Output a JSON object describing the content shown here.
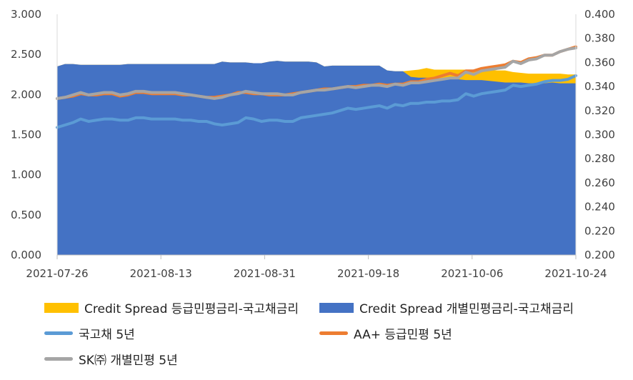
{
  "chart_data": {
    "type": "area+line",
    "left_axis": {
      "ticks": [
        "0.000",
        "0.500",
        "1.000",
        "1.500",
        "2.000",
        "2.500",
        "3.000"
      ],
      "ylim": [
        0,
        3.0
      ]
    },
    "right_axis": {
      "ticks": [
        "0.200",
        "0.220",
        "0.240",
        "0.260",
        "0.280",
        "0.300",
        "0.320",
        "0.340",
        "0.360",
        "0.380",
        "0.400"
      ],
      "ylim": [
        0.2,
        0.4
      ]
    },
    "x_ticks": [
      "2021-07-26",
      "2021-08-13",
      "2021-08-31",
      "2021-09-18",
      "2021-10-06",
      "2021-10-24"
    ],
    "n_points": 67,
    "series": [
      {
        "name": "Credit Spread 등급민평금리-국고채금리",
        "type": "area",
        "axis": "left",
        "color": "#FFC000",
        "values": [
          2.35,
          2.38,
          2.38,
          2.37,
          2.37,
          2.37,
          2.37,
          2.37,
          2.37,
          2.38,
          2.38,
          2.38,
          2.38,
          2.38,
          2.38,
          2.38,
          2.38,
          2.38,
          2.38,
          2.38,
          2.38,
          2.41,
          2.4,
          2.4,
          2.4,
          2.39,
          2.39,
          2.41,
          2.42,
          2.41,
          2.41,
          2.41,
          2.41,
          2.4,
          2.35,
          2.36,
          2.36,
          2.36,
          2.36,
          2.36,
          2.36,
          2.36,
          2.3,
          2.29,
          2.29,
          2.3,
          2.31,
          2.33,
          2.31,
          2.31,
          2.31,
          2.31,
          2.31,
          2.31,
          2.31,
          2.31,
          2.3,
          2.3,
          2.28,
          2.27,
          2.26,
          2.26,
          2.26,
          2.26,
          2.26,
          2.25,
          2.25
        ]
      },
      {
        "name": "Credit Spread 개별민평금리-국고채금리",
        "type": "area",
        "axis": "left",
        "color": "#4472C4",
        "values": [
          2.35,
          2.38,
          2.38,
          2.37,
          2.37,
          2.37,
          2.37,
          2.37,
          2.37,
          2.38,
          2.38,
          2.38,
          2.38,
          2.38,
          2.38,
          2.38,
          2.38,
          2.38,
          2.38,
          2.38,
          2.38,
          2.41,
          2.4,
          2.4,
          2.4,
          2.39,
          2.39,
          2.41,
          2.42,
          2.41,
          2.41,
          2.41,
          2.41,
          2.4,
          2.35,
          2.36,
          2.36,
          2.36,
          2.36,
          2.36,
          2.36,
          2.36,
          2.3,
          2.29,
          2.29,
          2.22,
          2.21,
          2.21,
          2.2,
          2.2,
          2.2,
          2.19,
          2.18,
          2.18,
          2.18,
          2.17,
          2.16,
          2.15,
          2.15,
          2.15,
          2.14,
          2.14,
          2.14,
          2.15,
          2.14,
          2.14,
          2.14
        ]
      },
      {
        "name": "국고채 5년",
        "type": "line",
        "axis": "right",
        "color": "#5B9BD5",
        "values": [
          0.306,
          0.308,
          0.31,
          0.313,
          0.311,
          0.312,
          0.313,
          0.313,
          0.312,
          0.312,
          0.314,
          0.314,
          0.313,
          0.313,
          0.313,
          0.313,
          0.312,
          0.312,
          0.311,
          0.311,
          0.309,
          0.308,
          0.309,
          0.31,
          0.314,
          0.313,
          0.311,
          0.312,
          0.312,
          0.311,
          0.311,
          0.314,
          0.315,
          0.316,
          0.317,
          0.318,
          0.32,
          0.322,
          0.321,
          0.322,
          0.323,
          0.324,
          0.322,
          0.325,
          0.324,
          0.326,
          0.326,
          0.327,
          0.327,
          0.328,
          0.328,
          0.329,
          0.334,
          0.332,
          0.334,
          0.335,
          0.336,
          0.337,
          0.341,
          0.34,
          0.341,
          0.342,
          0.344,
          0.345,
          0.345,
          0.346,
          0.349
        ]
      },
      {
        "name": "AA+ 등급민평 5년",
        "type": "line",
        "axis": "right",
        "color": "#ED7D31",
        "values": [
          0.33,
          0.331,
          0.332,
          0.334,
          0.333,
          0.333,
          0.334,
          0.334,
          0.332,
          0.333,
          0.335,
          0.335,
          0.334,
          0.334,
          0.334,
          0.334,
          0.333,
          0.333,
          0.332,
          0.331,
          0.331,
          0.332,
          0.333,
          0.335,
          0.335,
          0.334,
          0.334,
          0.333,
          0.333,
          0.333,
          0.334,
          0.335,
          0.336,
          0.337,
          0.338,
          0.338,
          0.339,
          0.34,
          0.34,
          0.341,
          0.341,
          0.342,
          0.341,
          0.342,
          0.342,
          0.344,
          0.344,
          0.346,
          0.347,
          0.349,
          0.351,
          0.349,
          0.353,
          0.353,
          0.355,
          0.356,
          0.357,
          0.358,
          0.361,
          0.36,
          0.363,
          0.364,
          0.366,
          0.366,
          0.369,
          0.371,
          0.373
        ]
      },
      {
        "name": "SK㈜ 개별민평 5년",
        "type": "line",
        "axis": "right",
        "color": "#A5A5A5",
        "values": [
          0.33,
          0.331,
          0.333,
          0.335,
          0.333,
          0.334,
          0.335,
          0.335,
          0.333,
          0.334,
          0.336,
          0.336,
          0.335,
          0.335,
          0.335,
          0.335,
          0.334,
          0.333,
          0.332,
          0.331,
          0.33,
          0.331,
          0.333,
          0.334,
          0.336,
          0.335,
          0.334,
          0.334,
          0.334,
          0.333,
          0.333,
          0.335,
          0.336,
          0.337,
          0.337,
          0.338,
          0.339,
          0.34,
          0.339,
          0.34,
          0.341,
          0.341,
          0.34,
          0.342,
          0.341,
          0.343,
          0.343,
          0.344,
          0.345,
          0.346,
          0.347,
          0.347,
          0.352,
          0.35,
          0.353,
          0.354,
          0.355,
          0.356,
          0.361,
          0.359,
          0.362,
          0.363,
          0.366,
          0.366,
          0.369,
          0.371,
          0.372
        ]
      }
    ]
  }
}
